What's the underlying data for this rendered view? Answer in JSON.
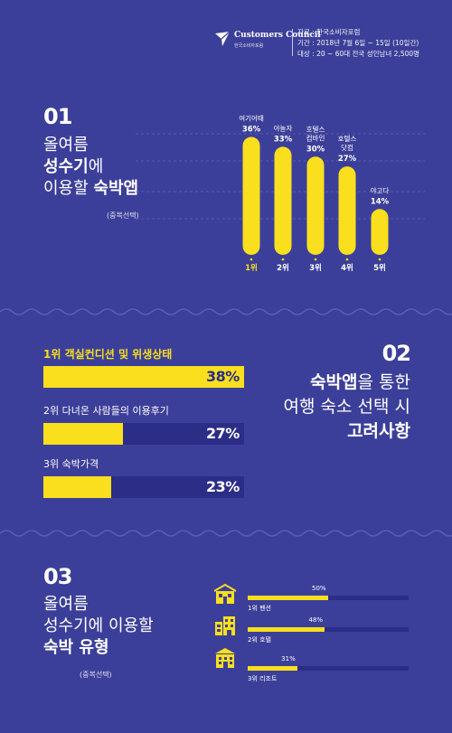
{
  "header": {
    "logo_name": "Customers Council",
    "logo_sub": "한국소비자포럼",
    "source": "자료 : 한국소비자포럼",
    "period": "기간 : 2018년 7월 6일 ~ 15일 (10일간)",
    "target": "대상 : 20 ~ 60대 전국 성인남녀 2,500명"
  },
  "colors": {
    "background": "#3c3f99",
    "accent": "#f9df1e",
    "track": "#2b2d86"
  },
  "section1": {
    "number": "01",
    "title_line1": "올여름",
    "title_line2a": "성수기",
    "title_line2b": "에",
    "title_line3a": "이용할 ",
    "title_line3b": "숙박앱",
    "note": "(중복선택)"
  },
  "section2": {
    "number": "02",
    "title_line1a": "숙박앱",
    "title_line1b": "을 통한",
    "title_line2": "여행 숙소 선택 시",
    "title_line3": "고려사항"
  },
  "section3": {
    "number": "03",
    "title_line1": "올여름",
    "title_line2": "성수기에 이용할",
    "title_line3": "숙박 유형",
    "note": "(중복선택)",
    "icons": [
      "pension-icon",
      "hotel-icon",
      "resort-icon"
    ]
  },
  "chart_data": [
    {
      "type": "bar",
      "orientation": "vertical",
      "categories": [
        "1위",
        "2위",
        "3위",
        "4위",
        "5위"
      ],
      "bar_labels": [
        "여기어때",
        "야놀자",
        "호텔스\n컴바인",
        "호텔스\n닷컴",
        "야고다"
      ],
      "values": [
        36,
        33,
        30,
        27,
        14
      ],
      "value_labels": [
        "36%",
        "33%",
        "30%",
        "27%",
        "14%"
      ],
      "ylim": [
        0,
        40
      ],
      "grid": true
    },
    {
      "type": "bar",
      "orientation": "horizontal",
      "categories": [
        "1위 객실컨디션 및 위생상태",
        "2위 다녀온 사람들의 이용후기",
        "3위 숙박가격"
      ],
      "values": [
        38,
        27,
        23
      ],
      "value_labels": [
        "38%",
        "27%",
        "23%"
      ],
      "xlim": [
        0,
        38
      ]
    },
    {
      "type": "bar",
      "orientation": "horizontal",
      "categories": [
        "1위 펜션",
        "2위 호텔",
        "3위 리조트"
      ],
      "values": [
        50,
        48,
        31
      ],
      "value_labels": [
        "50%",
        "48%",
        "31%"
      ],
      "xlim": [
        0,
        100
      ]
    }
  ]
}
